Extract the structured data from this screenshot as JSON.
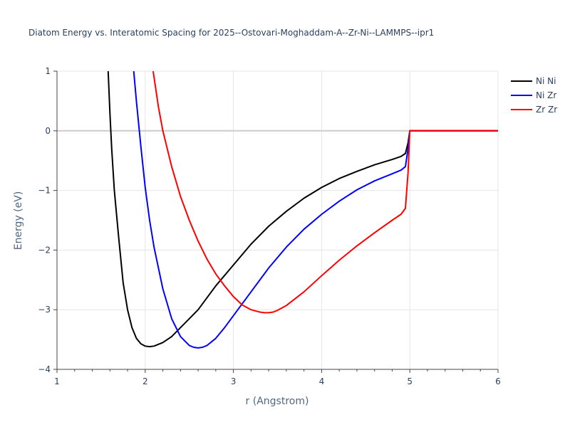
{
  "chart_data": {
    "type": "line",
    "title": "Diatom Energy vs. Interatomic Spacing for 2025--Ostovari-Moghaddam-A--Zr-Ni--LAMMPS--ipr1",
    "xlabel": "r (Angstrom)",
    "ylabel": "Energy (eV)",
    "xlim": [
      1,
      6
    ],
    "ylim": [
      -4,
      1
    ],
    "x_ticks": [
      1,
      2,
      3,
      4,
      5,
      6
    ],
    "y_ticks": [
      1,
      0,
      -1,
      -2,
      -3,
      -4
    ],
    "x_tick_labels": [
      "1",
      "2",
      "3",
      "4",
      "5",
      "6"
    ],
    "y_tick_labels": [
      "1",
      "0",
      "−1",
      "−2",
      "−3",
      "−4"
    ],
    "grid": true,
    "legend_position": "top-right",
    "series": [
      {
        "name": "Ni Ni",
        "color": "#000000",
        "x": [
          1.58,
          1.6,
          1.62,
          1.65,
          1.7,
          1.75,
          1.8,
          1.85,
          1.9,
          1.95,
          2.0,
          2.05,
          2.1,
          2.15,
          2.2,
          2.3,
          2.4,
          2.5,
          2.6,
          2.8,
          3.0,
          3.2,
          3.4,
          3.6,
          3.8,
          4.0,
          4.2,
          4.4,
          4.6,
          4.8,
          4.9,
          4.95,
          4.98,
          5.0,
          5.5,
          6.0
        ],
        "y": [
          1.0,
          0.3,
          -0.3,
          -1.0,
          -1.8,
          -2.55,
          -3.0,
          -3.3,
          -3.48,
          -3.57,
          -3.61,
          -3.62,
          -3.61,
          -3.58,
          -3.55,
          -3.45,
          -3.3,
          -3.15,
          -3.0,
          -2.6,
          -2.25,
          -1.9,
          -1.6,
          -1.35,
          -1.13,
          -0.95,
          -0.8,
          -0.68,
          -0.57,
          -0.48,
          -0.43,
          -0.38,
          -0.2,
          0.0,
          0.0,
          0.0
        ]
      },
      {
        "name": "Ni Zr",
        "color": "#0000ff",
        "x": [
          1.87,
          1.9,
          1.95,
          2.0,
          2.05,
          2.1,
          2.2,
          2.3,
          2.4,
          2.5,
          2.55,
          2.6,
          2.65,
          2.7,
          2.8,
          2.9,
          3.0,
          3.2,
          3.4,
          3.6,
          3.8,
          4.0,
          4.2,
          4.4,
          4.6,
          4.8,
          4.9,
          4.95,
          4.98,
          5.0,
          5.5,
          6.0
        ],
        "y": [
          1.0,
          0.5,
          -0.25,
          -0.95,
          -1.5,
          -1.95,
          -2.65,
          -3.15,
          -3.45,
          -3.6,
          -3.63,
          -3.64,
          -3.63,
          -3.6,
          -3.48,
          -3.3,
          -3.1,
          -2.7,
          -2.3,
          -1.95,
          -1.65,
          -1.4,
          -1.18,
          -0.99,
          -0.84,
          -0.72,
          -0.66,
          -0.6,
          -0.3,
          0.0,
          0.0,
          0.0
        ]
      },
      {
        "name": "Zr Zr",
        "color": "#ff0000",
        "x": [
          2.09,
          2.12,
          2.15,
          2.2,
          2.3,
          2.4,
          2.5,
          2.6,
          2.7,
          2.8,
          2.9,
          3.0,
          3.1,
          3.2,
          3.3,
          3.35,
          3.4,
          3.45,
          3.5,
          3.6,
          3.8,
          4.0,
          4.2,
          4.4,
          4.6,
          4.8,
          4.9,
          4.95,
          4.98,
          5.0,
          5.5,
          6.0
        ],
        "y": [
          1.0,
          0.7,
          0.4,
          0.0,
          -0.6,
          -1.1,
          -1.5,
          -1.85,
          -2.15,
          -2.4,
          -2.6,
          -2.78,
          -2.92,
          -3.0,
          -3.04,
          -3.05,
          -3.05,
          -3.04,
          -3.01,
          -2.93,
          -2.7,
          -2.43,
          -2.17,
          -1.93,
          -1.71,
          -1.5,
          -1.4,
          -1.3,
          -0.7,
          0.0,
          0.0,
          0.0
        ]
      }
    ]
  }
}
